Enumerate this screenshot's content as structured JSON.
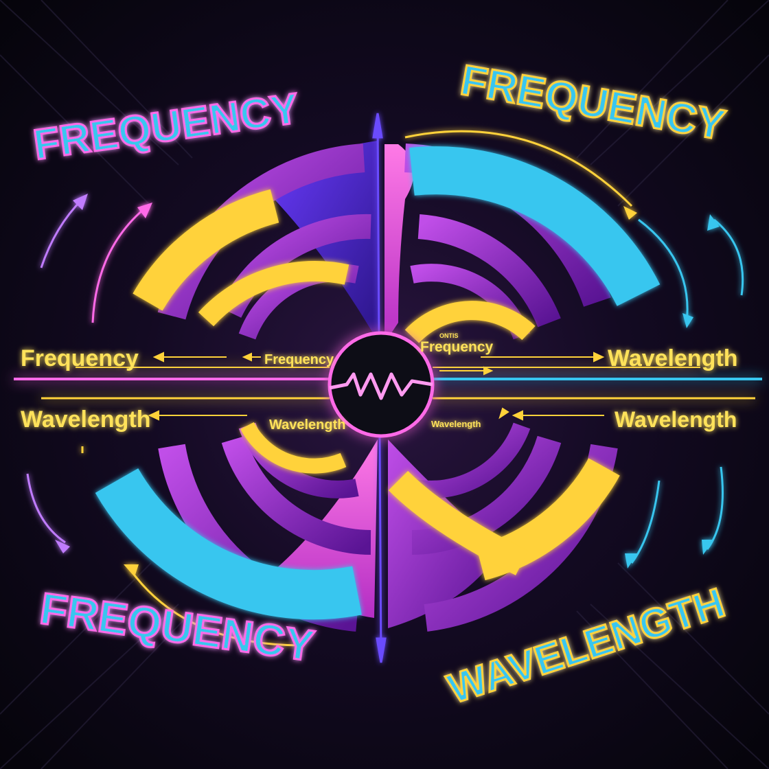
{
  "title_top_left": "FREQUENCY",
  "title_top_right": "FREQUENCY",
  "title_bottom_left": "FREQUENCY",
  "title_bottom_right": "WAVELENGTH",
  "labels": {
    "outer_left_top": "Frequency",
    "outer_left_bottom": "Wavelength",
    "outer_right_top": "Wavelength",
    "outer_right_bottom": "Wavelength",
    "inner_left_top": "Frequency",
    "inner_left_bottom": "Wavelength",
    "inner_right_top": "Frequency",
    "inner_right_bottom": "Wavelength",
    "inner_right_top_small": "ONTIS"
  },
  "colors": {
    "yellow": "#ffd23a",
    "cyan": "#39c6ef",
    "purple": "#8a2bc2",
    "magenta": "#e04bd8",
    "violet": "#4a2fb8",
    "neon_pink": "#ff6ae8"
  }
}
